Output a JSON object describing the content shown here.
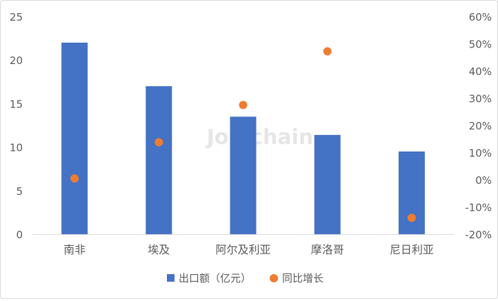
{
  "chart_data": {
    "type": "bar",
    "categories": [
      "南非",
      "埃及",
      "阿尔及利亚",
      "摩洛哥",
      "尼日利亚"
    ],
    "series": [
      {
        "name": "出口额（亿元）",
        "kind": "bar",
        "axis": "left",
        "color": "#4472C4",
        "values": [
          22.0,
          17.0,
          13.5,
          11.4,
          9.5
        ]
      },
      {
        "name": "同比增长",
        "kind": "scatter",
        "axis": "right",
        "color": "#ED7D31",
        "values": [
          0.5,
          13.8,
          27.5,
          47.2,
          -14.0
        ]
      }
    ],
    "ylim_left": [
      0,
      25
    ],
    "yticks_left": [
      "0",
      "5",
      "10",
      "15",
      "20",
      "25"
    ],
    "ylim_right": [
      -20,
      60
    ],
    "yticks_right": [
      "-20%",
      "-10%",
      "0%",
      "10%",
      "20%",
      "30%",
      "40%",
      "50%",
      "60%"
    ],
    "grid": false,
    "legend_position": "bottom",
    "watermark": "Joinchain"
  }
}
